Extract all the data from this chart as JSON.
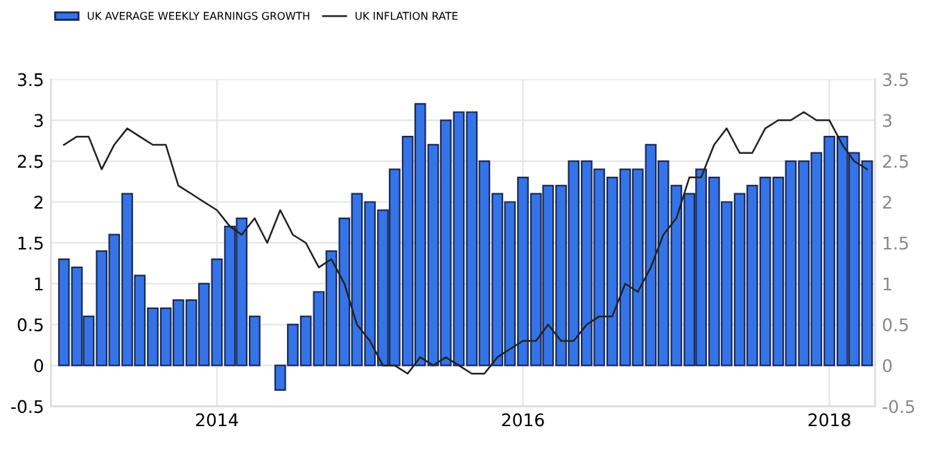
{
  "chart_data": {
    "type": "bar",
    "x": [
      "2013-01",
      "2013-02",
      "2013-03",
      "2013-04",
      "2013-05",
      "2013-06",
      "2013-07",
      "2013-08",
      "2013-09",
      "2013-10",
      "2013-11",
      "2013-12",
      "2014-01",
      "2014-02",
      "2014-03",
      "2014-04",
      "2014-05",
      "2014-06",
      "2014-07",
      "2014-08",
      "2014-09",
      "2014-10",
      "2014-11",
      "2014-12",
      "2015-01",
      "2015-02",
      "2015-03",
      "2015-04",
      "2015-05",
      "2015-06",
      "2015-07",
      "2015-08",
      "2015-09",
      "2015-10",
      "2015-11",
      "2015-12",
      "2016-01",
      "2016-02",
      "2016-03",
      "2016-04",
      "2016-05",
      "2016-06",
      "2016-07",
      "2016-08",
      "2016-09",
      "2016-10",
      "2016-11",
      "2016-12",
      "2017-01",
      "2017-02",
      "2017-03",
      "2017-04",
      "2017-05",
      "2017-06",
      "2017-07",
      "2017-08",
      "2017-09",
      "2017-10",
      "2017-11",
      "2017-12",
      "2018-01",
      "2018-02",
      "2018-03",
      "2018-04"
    ],
    "series": [
      {
        "name": "UK AVERAGE WEEKLY EARNINGS GROWTH",
        "color": "#3574e8",
        "values": [
          1.3,
          1.2,
          0.6,
          1.4,
          1.6,
          2.1,
          1.1,
          0.7,
          0.7,
          0.8,
          0.8,
          1.0,
          1.3,
          1.7,
          1.8,
          0.6,
          null,
          -0.3,
          0.5,
          0.6,
          0.9,
          1.4,
          1.8,
          2.1,
          2.0,
          1.9,
          2.4,
          2.8,
          3.2,
          2.7,
          3.0,
          3.1,
          3.1,
          2.5,
          2.1,
          2.0,
          2.3,
          2.1,
          2.2,
          2.2,
          2.5,
          2.5,
          2.4,
          2.3,
          2.4,
          2.4,
          2.7,
          2.5,
          2.2,
          2.1,
          2.4,
          2.3,
          2.0,
          2.1,
          2.2,
          2.3,
          2.3,
          2.5,
          2.5,
          2.6,
          2.8,
          2.8,
          2.6,
          2.5
        ]
      },
      {
        "name": "UK INFLATION RATE",
        "type": "line",
        "color": "#222222",
        "values": [
          2.7,
          2.8,
          2.8,
          2.4,
          2.7,
          2.9,
          2.8,
          2.7,
          2.7,
          2.2,
          2.1,
          2.0,
          1.9,
          1.7,
          1.6,
          1.8,
          1.5,
          1.9,
          1.6,
          1.5,
          1.2,
          1.3,
          1.0,
          0.5,
          0.3,
          0.0,
          0.0,
          -0.1,
          0.1,
          0.0,
          0.1,
          0.0,
          -0.1,
          -0.1,
          0.1,
          0.2,
          0.3,
          0.3,
          0.5,
          0.3,
          0.3,
          0.5,
          0.6,
          0.6,
          1.0,
          0.9,
          1.2,
          1.6,
          1.8,
          2.3,
          2.3,
          2.7,
          2.9,
          2.6,
          2.6,
          2.9,
          3.0,
          3.0,
          3.1,
          3.0,
          3.0,
          2.7,
          2.5,
          2.4
        ]
      }
    ],
    "xlim": [
      "2012-12-01",
      "2018-04-20"
    ],
    "xticks": [
      {
        "value": "2014-01-01",
        "label": "2014"
      },
      {
        "value": "2016-01-01",
        "label": "2016"
      },
      {
        "value": "2018-01-01",
        "label": "2018"
      }
    ],
    "ylim": [
      -0.5,
      3.5
    ],
    "yticks": [
      -0.5,
      0,
      0.5,
      1,
      1.5,
      2,
      2.5,
      3,
      3.5
    ],
    "y2lim": [
      -0.5,
      3.5
    ],
    "y2ticks": [
      -0.5,
      0,
      0.5,
      1,
      1.5,
      2,
      2.5,
      3,
      3.5
    ],
    "grid": true,
    "legend": "top left",
    "line_style": "solid",
    "marker": "none"
  }
}
